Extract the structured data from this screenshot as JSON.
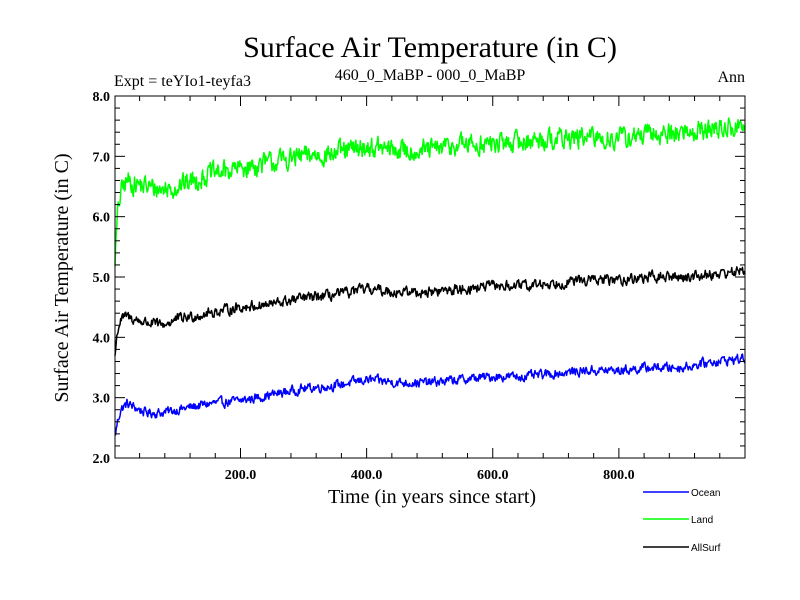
{
  "chart_data": {
    "type": "line",
    "title": "Surface Air Temperature (in C)",
    "subtitle_left": "Expt = teYIo1-teyfa3",
    "subtitle_center": "460_0_MaBP - 000_0_MaBP",
    "subtitle_right": "Ann",
    "xlabel": "Time (in years since start)",
    "ylabel": "Surface Air Temperature (in C)",
    "xlim": [
      1,
      1000
    ],
    "ylim": [
      2.0,
      8.0
    ],
    "xticks": [
      200,
      400,
      600,
      800
    ],
    "xtick_labels": [
      "200.0",
      "400.0",
      "600.0",
      "800.0"
    ],
    "yticks": [
      2,
      3,
      4,
      5,
      6,
      7,
      8
    ],
    "ytick_labels": [
      "2.0",
      "3.0",
      "4.0",
      "5.0",
      "6.0",
      "7.0",
      "8.0"
    ],
    "series": [
      {
        "name": "Ocean",
        "color": "#0000ff",
        "x": [
          1,
          5,
          10,
          20,
          30,
          50,
          75,
          100,
          150,
          200,
          250,
          300,
          350,
          400,
          450,
          500,
          550,
          600,
          650,
          700,
          750,
          800,
          850,
          900,
          950,
          1000
        ],
        "values": [
          2.35,
          2.6,
          2.8,
          2.9,
          2.85,
          2.75,
          2.75,
          2.8,
          2.9,
          2.95,
          3.05,
          3.15,
          3.2,
          3.3,
          3.25,
          3.25,
          3.3,
          3.35,
          3.35,
          3.4,
          3.45,
          3.45,
          3.5,
          3.5,
          3.6,
          3.65
        ],
        "noise": 0.09
      },
      {
        "name": "Land",
        "color": "#00ff00",
        "x": [
          1,
          5,
          10,
          20,
          30,
          50,
          75,
          100,
          150,
          200,
          250,
          300,
          350,
          400,
          450,
          500,
          550,
          600,
          650,
          700,
          750,
          800,
          850,
          900,
          950,
          1000
        ],
        "values": [
          5.3,
          6.0,
          6.4,
          6.6,
          6.55,
          6.5,
          6.45,
          6.5,
          6.7,
          6.8,
          6.9,
          7.0,
          7.05,
          7.15,
          7.1,
          7.1,
          7.2,
          7.2,
          7.25,
          7.3,
          7.3,
          7.3,
          7.35,
          7.4,
          7.45,
          7.5
        ],
        "noise": 0.2
      },
      {
        "name": "AllSurf",
        "color": "#000000",
        "x": [
          1,
          5,
          10,
          20,
          30,
          50,
          75,
          100,
          150,
          200,
          250,
          300,
          350,
          400,
          450,
          500,
          550,
          600,
          650,
          700,
          750,
          800,
          850,
          900,
          950,
          1000
        ],
        "values": [
          3.7,
          4.1,
          4.3,
          4.35,
          4.3,
          4.25,
          4.2,
          4.3,
          4.4,
          4.5,
          4.55,
          4.65,
          4.7,
          4.8,
          4.75,
          4.75,
          4.8,
          4.85,
          4.85,
          4.9,
          4.95,
          4.95,
          5.0,
          5.0,
          5.05,
          5.1
        ],
        "noise": 0.1
      }
    ],
    "legend": "bottom-right"
  }
}
